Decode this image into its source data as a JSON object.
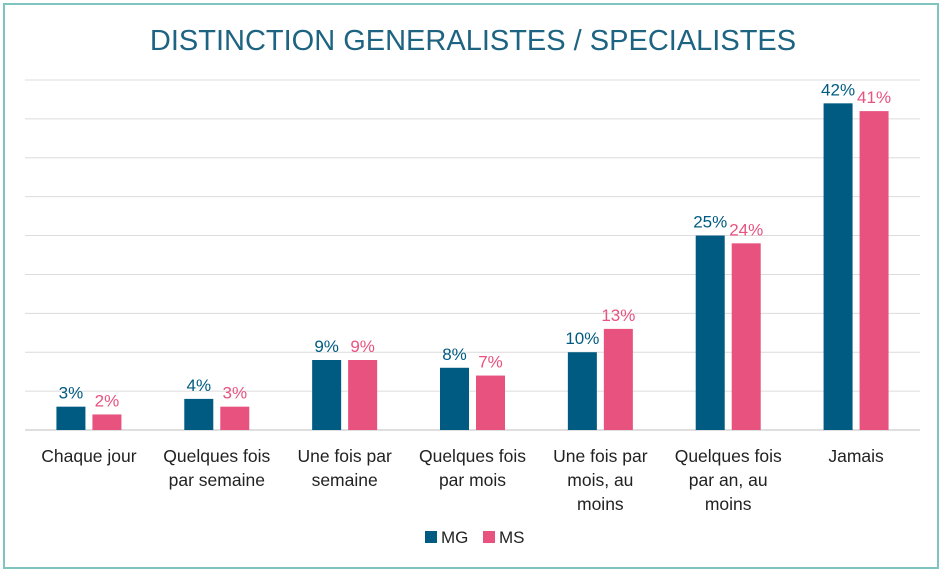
{
  "chart_data": {
    "type": "bar",
    "title": "DISTINCTION GENERALISTES / SPECIALISTES",
    "categories": [
      [
        "Chaque jour"
      ],
      [
        "Quelques fois",
        "par semaine"
      ],
      [
        "Une fois par",
        "semaine"
      ],
      [
        "Quelques fois",
        "par mois"
      ],
      [
        "Une fois par",
        "mois, au",
        "moins"
      ],
      [
        "Quelques fois",
        "par an, au",
        "moins"
      ],
      [
        "Jamais"
      ]
    ],
    "series": [
      {
        "name": "MG",
        "color": "#005b82",
        "values": [
          3,
          4,
          9,
          8,
          10,
          25,
          42
        ],
        "labels": [
          "3%",
          "4%",
          "9%",
          "8%",
          "10%",
          "25%",
          "42%"
        ]
      },
      {
        "name": "MS",
        "color": "#e8527f",
        "values": [
          2,
          3,
          9,
          7,
          13,
          24,
          41
        ],
        "labels": [
          "2%",
          "3%",
          "9%",
          "7%",
          "13%",
          "24%",
          "41%"
        ]
      }
    ],
    "ylim": [
      0,
      45
    ],
    "grid": true,
    "legend": "bottom-center",
    "xlabel": "",
    "ylabel": ""
  }
}
